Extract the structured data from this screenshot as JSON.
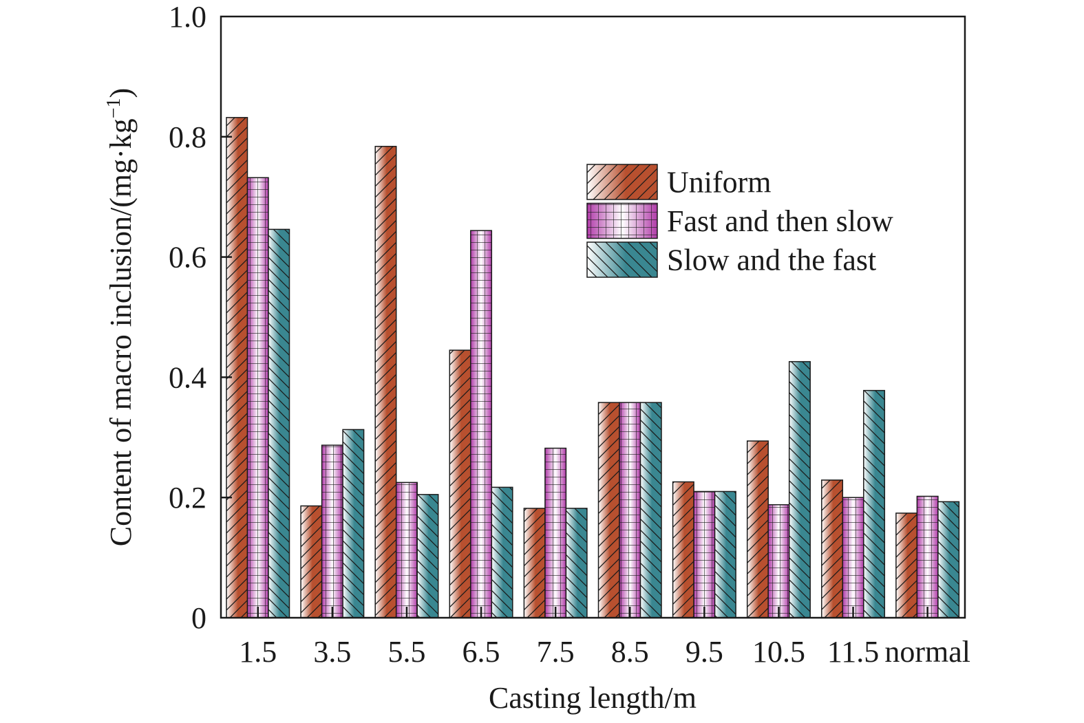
{
  "chart_data": {
    "type": "bar",
    "xlabel": "Casting length/m",
    "ylabel": "Content of macro inclusion/(mg·kg",
    "ylabel_sup": "−1",
    "ylabel_close": ")",
    "ylim": [
      0,
      1.0
    ],
    "yticks": [
      0,
      0.2,
      0.4,
      0.6,
      0.8,
      1.0
    ],
    "ytick_labels": [
      "0",
      "0.2",
      "0.4",
      "0.6",
      "0.8",
      "1.0"
    ],
    "categories": [
      "1.5",
      "3.5",
      "5.5",
      "6.5",
      "7.5",
      "8.5",
      "9.5",
      "10.5",
      "11.5",
      "normal"
    ],
    "series": [
      {
        "name": "Uniform",
        "color": "#b8502f",
        "pattern": "diagonal-up",
        "values": [
          0.832,
          0.186,
          0.784,
          0.445,
          0.182,
          0.358,
          0.226,
          0.294,
          0.229,
          0.174
        ]
      },
      {
        "name": "Fast and then slow",
        "color": "#b03aa8",
        "pattern": "grid",
        "values": [
          0.732,
          0.287,
          0.225,
          0.644,
          0.282,
          0.358,
          0.21,
          0.188,
          0.2,
          0.202
        ]
      },
      {
        "name": "Slow and the fast",
        "color": "#3a8791",
        "pattern": "diagonal-down",
        "values": [
          0.646,
          0.313,
          0.205,
          0.217,
          0.182,
          0.358,
          0.21,
          0.426,
          0.378,
          0.193
        ]
      }
    ],
    "legend_position": "top-right",
    "grid": false
  }
}
